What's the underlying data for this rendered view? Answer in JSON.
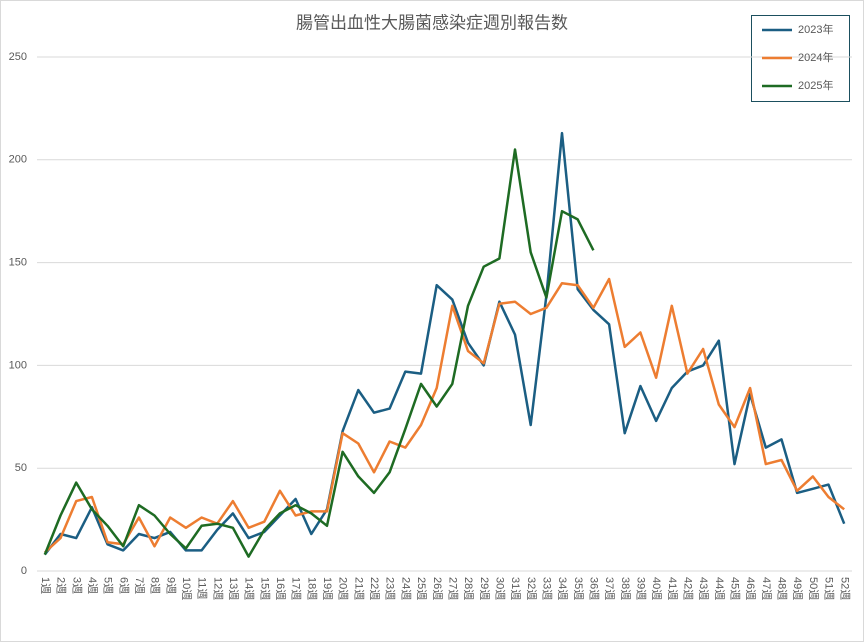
{
  "chart_data": {
    "type": "line",
    "title": "腸管出血性大腸菌感染症週別報告数",
    "categories": [
      "1週",
      "2週",
      "3週",
      "4週",
      "5週",
      "6週",
      "7週",
      "8週",
      "9週",
      "10週",
      "11週",
      "12週",
      "13週",
      "14週",
      "15週",
      "16週",
      "17週",
      "18週",
      "19週",
      "20週",
      "21週",
      "22週",
      "23週",
      "24週",
      "25週",
      "26週",
      "27週",
      "28週",
      "29週",
      "30週",
      "31週",
      "32週",
      "33週",
      "34週",
      "35週",
      "36週",
      "37週",
      "38週",
      "39週",
      "40週",
      "41週",
      "42週",
      "43週",
      "44週",
      "45週",
      "46週",
      "47週",
      "48週",
      "49週",
      "50週",
      "51週",
      "52週"
    ],
    "series": [
      {
        "name": "2023年",
        "color": "#1b5e83",
        "values": [
          8,
          18,
          16,
          31,
          13,
          10,
          18,
          16,
          19,
          10,
          10,
          20,
          28,
          16,
          19,
          27,
          35,
          18,
          30,
          68,
          88,
          77,
          79,
          97,
          96,
          139,
          132,
          111,
          100,
          131,
          115,
          71,
          134,
          213,
          137,
          127,
          120,
          67,
          90,
          73,
          89,
          97,
          100,
          112,
          52,
          86,
          60,
          64,
          38,
          40,
          42,
          23
        ]
      },
      {
        "name": "2024年",
        "color": "#ed7d31",
        "values": [
          9,
          16,
          34,
          36,
          14,
          13,
          26,
          12,
          26,
          21,
          26,
          23,
          34,
          21,
          24,
          39,
          27,
          29,
          29,
          67,
          62,
          48,
          63,
          60,
          71,
          89,
          129,
          107,
          101,
          130,
          131,
          125,
          128,
          140,
          139,
          128,
          142,
          109,
          116,
          94,
          129,
          96,
          108,
          81,
          70,
          89,
          52,
          54,
          39,
          46,
          36,
          30
        ]
      },
      {
        "name": "2025年",
        "color": "#1e6b23",
        "values": [
          8,
          27,
          43,
          30,
          22,
          12,
          32,
          27,
          18,
          11,
          22,
          23,
          21,
          7,
          20,
          28,
          32,
          28,
          22,
          58,
          46,
          38,
          48,
          69,
          91,
          80,
          91,
          129,
          148,
          152,
          205,
          155,
          133,
          175,
          171,
          156,
          null,
          null,
          null,
          null,
          null,
          null,
          null,
          null,
          null,
          null,
          null,
          null,
          null,
          null,
          null,
          null
        ]
      }
    ],
    "ylim": [
      0,
      250
    ],
    "yticks": [
      0,
      50,
      100,
      150,
      200,
      250
    ],
    "grid": true,
    "legend": "top-right"
  }
}
